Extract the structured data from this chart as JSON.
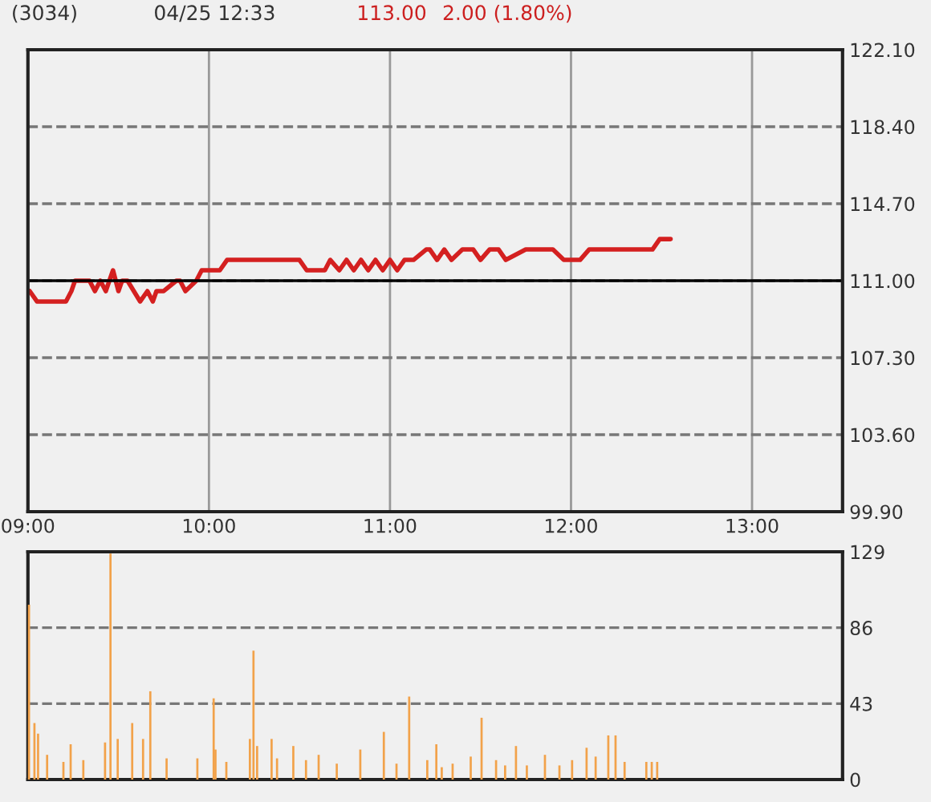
{
  "chart_data": [
    {
      "type": "line",
      "title": "(3034)",
      "subtitle": "04/25 12:33",
      "annotations": [
        "113.00",
        "2.00 (1.80%)"
      ],
      "xlim": [
        9,
        13.5
      ],
      "xticks": [
        {
          "value": 9,
          "label": "09:00"
        },
        {
          "value": 10,
          "label": "10:00"
        },
        {
          "value": 11,
          "label": "11:00"
        },
        {
          "value": 12,
          "label": "12:00"
        },
        {
          "value": 13,
          "label": "13:00"
        }
      ],
      "ylim": [
        99.9,
        122.1
      ],
      "yticks": [
        {
          "value": 99.9,
          "label": "99.90"
        },
        {
          "value": 103.6,
          "label": "103.60"
        },
        {
          "value": 107.3,
          "label": "107.30"
        },
        {
          "value": 111.0,
          "label": "111.00"
        },
        {
          "value": 114.7,
          "label": "114.70"
        },
        {
          "value": 118.4,
          "label": "118.40"
        },
        {
          "value": 122.1,
          "label": "122.10"
        }
      ],
      "grid": true,
      "legend": false,
      "ref_lines": [
        {
          "axis": "y",
          "value": 111.0,
          "color": "#000000",
          "line_style": "solid"
        }
      ],
      "series": [
        {
          "color": "#d42020",
          "x": [
            9.01,
            9.05,
            9.21,
            9.24,
            9.26,
            9.34,
            9.37,
            9.4,
            9.43,
            9.45,
            9.47,
            9.5,
            9.52,
            9.55,
            9.62,
            9.66,
            9.69,
            9.71,
            9.75,
            9.82,
            9.84,
            9.87,
            9.93,
            9.96,
            9.99,
            10.02,
            10.06,
            10.1,
            10.19,
            10.23,
            10.5,
            10.54,
            10.64,
            10.67,
            10.72,
            10.76,
            10.8,
            10.84,
            10.88,
            10.92,
            10.96,
            11.0,
            11.04,
            11.08,
            11.13,
            11.2,
            11.22,
            11.26,
            11.3,
            11.34,
            11.4,
            11.46,
            11.5,
            11.55,
            11.6,
            11.64,
            11.75,
            11.9,
            11.96,
            12.05,
            12.1,
            12.15,
            12.45,
            12.49,
            12.55
          ],
          "values": [
            110.5,
            110.0,
            110.0,
            110.5,
            111.0,
            111.0,
            110.5,
            111.0,
            110.5,
            111.0,
            111.5,
            110.5,
            111.0,
            111.0,
            110.0,
            110.5,
            110.0,
            110.5,
            110.5,
            111.0,
            111.0,
            110.5,
            111.0,
            111.5,
            111.5,
            111.5,
            111.5,
            112.0,
            112.0,
            112.0,
            112.0,
            111.5,
            111.5,
            112.0,
            111.5,
            112.0,
            111.5,
            112.0,
            111.5,
            112.0,
            111.5,
            112.0,
            111.5,
            112.0,
            112.0,
            112.5,
            112.5,
            112.0,
            112.5,
            112.0,
            112.5,
            112.5,
            112.0,
            112.5,
            112.5,
            112.0,
            112.5,
            112.5,
            112.0,
            112.0,
            112.5,
            112.5,
            112.5,
            113.0,
            113.0
          ]
        }
      ]
    },
    {
      "type": "bar",
      "xlim": [
        9,
        13.5
      ],
      "ylim": [
        0,
        129
      ],
      "yticks": [
        0,
        43,
        86,
        129
      ],
      "grid": "y",
      "tick_labels": "y",
      "legend": false,
      "series": [
        {
          "color": "#f2a24a",
          "x": [
            9.0,
            9.03,
            9.05,
            9.1,
            9.19,
            9.23,
            9.3,
            9.42,
            9.45,
            9.49,
            9.57,
            9.63,
            9.67,
            9.76,
            9.93,
            10.02,
            10.03,
            10.09,
            10.22,
            10.24,
            10.26,
            10.34,
            10.37,
            10.46,
            10.53,
            10.6,
            10.7,
            10.83,
            10.96,
            11.03,
            11.1,
            11.2,
            11.25,
            11.28,
            11.34,
            11.44,
            11.5,
            11.58,
            11.63,
            11.69,
            11.75,
            11.85,
            11.93,
            12.0,
            12.08,
            12.13,
            12.2,
            12.24,
            12.29,
            12.41,
            12.44,
            12.47
          ],
          "values": [
            99,
            32,
            26,
            14,
            10,
            20,
            11,
            21,
            128,
            23,
            32,
            23,
            50,
            12,
            12,
            46,
            17,
            10,
            23,
            73,
            19,
            23,
            12,
            19,
            11,
            14,
            9,
            17,
            27,
            9,
            47,
            11,
            20,
            7,
            9,
            13,
            35,
            11,
            8,
            19,
            8,
            14,
            8,
            11,
            18,
            13,
            25,
            25,
            10,
            10,
            10,
            10
          ]
        }
      ]
    }
  ]
}
